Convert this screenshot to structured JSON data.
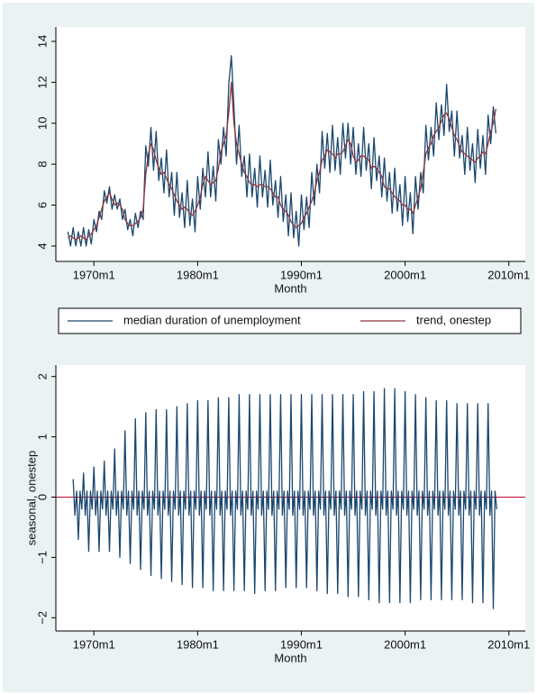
{
  "chart_data": [
    {
      "type": "line",
      "xlabel": "Month",
      "legend": "bottom",
      "grid": false,
      "xlim": [
        76,
        619
      ],
      "ylim": [
        3.25,
        14.7
      ],
      "xticks": [
        {
          "value": 120,
          "label": "1970m1"
        },
        {
          "value": 240,
          "label": "1980m1"
        },
        {
          "value": 360,
          "label": "1990m1"
        },
        {
          "value": 480,
          "label": "2000m1"
        },
        {
          "value": 600,
          "label": "2010m1"
        }
      ],
      "yticks": [
        4,
        6,
        8,
        10,
        12,
        14
      ],
      "x": [
        90,
        93,
        96,
        99,
        102,
        105,
        108,
        111,
        114,
        117,
        120,
        123,
        126,
        129,
        132,
        135,
        138,
        141,
        144,
        147,
        150,
        153,
        156,
        159,
        162,
        165,
        168,
        171,
        174,
        177,
        180,
        183,
        186,
        189,
        192,
        195,
        198,
        201,
        204,
        207,
        210,
        213,
        216,
        219,
        222,
        225,
        228,
        231,
        234,
        237,
        240,
        243,
        246,
        249,
        252,
        255,
        258,
        261,
        264,
        267,
        270,
        273,
        276,
        279,
        282,
        285,
        288,
        291,
        294,
        297,
        300,
        303,
        306,
        309,
        312,
        315,
        318,
        321,
        324,
        327,
        330,
        333,
        336,
        339,
        342,
        345,
        348,
        351,
        354,
        357,
        360,
        363,
        366,
        369,
        372,
        375,
        378,
        381,
        384,
        387,
        390,
        393,
        396,
        399,
        402,
        405,
        408,
        411,
        414,
        417,
        420,
        423,
        426,
        429,
        432,
        435,
        438,
        441,
        444,
        447,
        450,
        453,
        456,
        459,
        462,
        465,
        468,
        471,
        474,
        477,
        480,
        483,
        486,
        489,
        492,
        495,
        498,
        501,
        504,
        507,
        510,
        513,
        516,
        519,
        522,
        525,
        528,
        531,
        534,
        537,
        540,
        543,
        546,
        549,
        552,
        555,
        558,
        561,
        564,
        567,
        570,
        573,
        576,
        579,
        582,
        585
      ],
      "series": [
        {
          "name": "median duration of unemployment",
          "color": "#1a476f",
          "values": [
            4.7,
            4.0,
            4.9,
            4.0,
            4.7,
            4.0,
            4.9,
            4.0,
            4.8,
            4.1,
            5.3,
            4.7,
            5.7,
            5.3,
            6.7,
            6.1,
            6.9,
            5.8,
            6.5,
            5.8,
            6.3,
            5.3,
            5.8,
            4.8,
            5.3,
            4.5,
            5.6,
            4.9,
            5.7,
            5.3,
            8.9,
            7.9,
            9.8,
            7.7,
            9.6,
            7.2,
            8.3,
            6.6,
            8.7,
            6.4,
            7.6,
            5.5,
            7.6,
            5.4,
            6.6,
            4.9,
            7.2,
            5.0,
            6.3,
            4.7,
            7.4,
            5.8,
            7.8,
            6.4,
            8.6,
            6.4,
            7.9,
            6.2,
            9.2,
            8.0,
            9.8,
            8.4,
            11.9,
            13.3,
            10.8,
            8.0,
            9.9,
            7.4,
            8.4,
            6.4,
            8.5,
            6.4,
            7.8,
            5.9,
            8.4,
            6.4,
            7.7,
            5.9,
            8.2,
            6.0,
            7.2,
            5.4,
            7.4,
            5.2,
            6.5,
            4.5,
            6.6,
            4.4,
            5.7,
            4.0,
            6.5,
            4.8,
            6.4,
            4.9,
            7.6,
            6.0,
            8.0,
            6.6,
            9.6,
            7.8,
            9.5,
            7.6,
            9.9,
            7.7,
            9.3,
            7.5,
            10.0,
            8.3,
            10.0,
            8.0,
            9.8,
            7.5,
            9.0,
            7.4,
            9.8,
            7.7,
            9.0,
            6.8,
            9.3,
            7.2,
            8.4,
            6.4,
            8.3,
            6.2,
            7.6,
            5.6,
            7.8,
            5.7,
            7.0,
            5.0,
            7.4,
            5.2,
            6.6,
            4.6,
            7.4,
            5.8,
            7.6,
            6.6,
            9.9,
            8.2,
            9.8,
            8.4,
            11.0,
            9.2,
            10.9,
            9.4,
            11.9,
            9.6,
            10.6,
            8.4,
            10.6,
            8.3,
            9.4,
            7.5,
            9.8,
            7.7,
            9.0,
            7.1,
            9.7,
            7.8,
            9.4,
            7.5,
            10.4,
            9.0,
            10.8,
            9.5
          ]
        },
        {
          "name": "trend, onestep",
          "color": "#90353b",
          "values": [
            4.4,
            4.5,
            4.4,
            4.3,
            4.4,
            4.5,
            4.4,
            4.3,
            4.5,
            4.6,
            4.8,
            5.0,
            5.4,
            5.8,
            6.2,
            6.4,
            6.6,
            6.3,
            6.0,
            6.1,
            6.0,
            5.8,
            5.3,
            5.1,
            5.0,
            5.0,
            5.1,
            5.2,
            5.4,
            5.8,
            7.5,
            8.5,
            9.0,
            8.7,
            8.2,
            7.8,
            7.5,
            7.6,
            7.3,
            7.0,
            6.8,
            6.5,
            6.2,
            6.0,
            5.8,
            5.9,
            5.8,
            5.6,
            5.5,
            5.7,
            6.0,
            6.4,
            7.0,
            7.4,
            7.2,
            7.0,
            7.1,
            7.2,
            7.8,
            8.6,
            9.0,
            9.4,
            10.5,
            12.0,
            10.0,
            9.0,
            8.5,
            8.0,
            7.6,
            7.4,
            7.1,
            7.0,
            7.0,
            6.9,
            7.0,
            7.0,
            6.9,
            6.9,
            6.8,
            6.6,
            6.4,
            6.4,
            6.0,
            5.8,
            5.7,
            5.5,
            5.2,
            5.0,
            4.9,
            5.0,
            5.1,
            5.4,
            5.6,
            5.9,
            6.2,
            6.6,
            7.2,
            7.6,
            8.2,
            8.4,
            8.7,
            8.6,
            8.5,
            8.3,
            8.5,
            8.5,
            8.6,
            8.9,
            9.2,
            9.0,
            8.4,
            8.1,
            8.2,
            8.4,
            8.4,
            8.3,
            8.2,
            7.8,
            7.9,
            7.8,
            7.6,
            7.4,
            6.9,
            6.8,
            6.8,
            6.6,
            6.4,
            6.3,
            6.2,
            6.0,
            6.0,
            5.8,
            5.8,
            5.6,
            6.0,
            6.4,
            6.8,
            7.6,
            8.5,
            8.8,
            9.0,
            9.4,
            9.6,
            9.8,
            10.1,
            10.4,
            10.5,
            10.2,
            9.8,
            9.4,
            9.2,
            8.9,
            8.6,
            8.5,
            8.4,
            8.3,
            8.2,
            8.1,
            8.3,
            8.4,
            8.6,
            8.5,
            9.0,
            9.6,
            10.0,
            10.7
          ]
        }
      ]
    },
    {
      "type": "line",
      "xlabel": "Month",
      "ylabel": "seasonal, onestep",
      "grid": false,
      "xlim": [
        76,
        619
      ],
      "ylim": [
        -2.22,
        2.19
      ],
      "xticks": [
        {
          "value": 120,
          "label": "1970m1"
        },
        {
          "value": 240,
          "label": "1980m1"
        },
        {
          "value": 360,
          "label": "1990m1"
        },
        {
          "value": 480,
          "label": "2000m1"
        },
        {
          "value": 600,
          "label": "2010m1"
        }
      ],
      "yticks": [
        {
          "value": -2,
          "label": "−2"
        },
        {
          "value": -1,
          "label": "−1"
        },
        0,
        1,
        2
      ],
      "reference_line": {
        "value": 0,
        "color": "#c10534"
      },
      "x": [
        96,
        98,
        100,
        102,
        104,
        106,
        108,
        110,
        112,
        114,
        116,
        118,
        120,
        122,
        124,
        126,
        128,
        130,
        132,
        134,
        136,
        138,
        140,
        142,
        144,
        146,
        148,
        150,
        152,
        154,
        156,
        158,
        160,
        162,
        164,
        166,
        168,
        170,
        172,
        174,
        176,
        178,
        180,
        182,
        184,
        186,
        188,
        190,
        192,
        194,
        196,
        198,
        200,
        202,
        204,
        206,
        208,
        210,
        212,
        214,
        216,
        218,
        220,
        222,
        224,
        226,
        228,
        230,
        232,
        234,
        236,
        238,
        240,
        242,
        244,
        246,
        248,
        250,
        252,
        254,
        256,
        258,
        260,
        262,
        264,
        266,
        268,
        270,
        272,
        274,
        276,
        278,
        280,
        282,
        284,
        286,
        288,
        290,
        292,
        294,
        296,
        298,
        300,
        302,
        304,
        306,
        308,
        310,
        312,
        314,
        316,
        318,
        320,
        322,
        324,
        326,
        328,
        330,
        332,
        334,
        336,
        338,
        340,
        342,
        344,
        346,
        348,
        350,
        352,
        354,
        356,
        358,
        360,
        362,
        364,
        366,
        368,
        370,
        372,
        374,
        376,
        378,
        380,
        382,
        384,
        386,
        388,
        390,
        392,
        394,
        396,
        398,
        400,
        402,
        404,
        406,
        408,
        410,
        412,
        414,
        416,
        418,
        420,
        422,
        424,
        426,
        428,
        430,
        432,
        434,
        436,
        438,
        440,
        442,
        444,
        446,
        448,
        450,
        452,
        454,
        456,
        458,
        460,
        462,
        464,
        466,
        468,
        470,
        472,
        474,
        476,
        478,
        480,
        482,
        484,
        486,
        488,
        490,
        492,
        494,
        496,
        498,
        500,
        502,
        504,
        506,
        508,
        510,
        512,
        514,
        516,
        518,
        520,
        522,
        524,
        526,
        528,
        530,
        532,
        534,
        536,
        538,
        540,
        542,
        544,
        546,
        548,
        550,
        552,
        554,
        556,
        558,
        560,
        562,
        564,
        566,
        568,
        570,
        572,
        574,
        576,
        578,
        580,
        582,
        584,
        586
      ],
      "series": [
        {
          "name": "seasonal, onestep",
          "color": "#1a476f",
          "values": [
            0.3,
            -0.3,
            0.1,
            -0.7,
            0.1,
            -0.2,
            0.4,
            -0.3,
            0.1,
            -0.9,
            0.1,
            -0.2,
            0.5,
            -0.3,
            0.1,
            -0.9,
            0.1,
            -0.2,
            0.6,
            -0.3,
            0.1,
            -0.9,
            0.1,
            -0.2,
            0.8,
            -0.3,
            0.1,
            -1.0,
            0.1,
            -0.2,
            1.1,
            -0.3,
            0.1,
            -1.1,
            0.1,
            -0.2,
            1.3,
            -0.3,
            0.1,
            -1.2,
            0.1,
            -0.2,
            1.4,
            -0.3,
            0.1,
            -1.3,
            0.1,
            -0.2,
            1.45,
            -0.3,
            0.1,
            -1.35,
            0.1,
            -0.2,
            1.45,
            -0.3,
            0.1,
            -1.4,
            0.1,
            -0.2,
            1.5,
            -0.3,
            0.1,
            -1.45,
            0.1,
            -0.2,
            1.55,
            -0.3,
            0.1,
            -1.5,
            0.1,
            -0.2,
            1.6,
            -0.3,
            0.1,
            -1.5,
            0.1,
            -0.2,
            1.6,
            -0.3,
            0.1,
            -1.55,
            0.1,
            -0.2,
            1.65,
            -0.3,
            0.1,
            -1.55,
            0.1,
            -0.2,
            1.65,
            -0.3,
            0.1,
            -1.55,
            0.1,
            -0.2,
            1.7,
            -0.3,
            0.1,
            -1.55,
            0.1,
            -0.2,
            1.7,
            -0.3,
            0.1,
            -1.6,
            0.1,
            -0.2,
            1.7,
            -0.3,
            0.1,
            -1.55,
            0.1,
            -0.2,
            1.7,
            -0.3,
            0.1,
            -1.55,
            0.1,
            -0.2,
            1.7,
            -0.3,
            0.1,
            -1.5,
            0.1,
            -0.2,
            1.7,
            -0.3,
            0.1,
            -1.5,
            0.1,
            -0.2,
            1.7,
            -0.3,
            0.1,
            -1.5,
            0.1,
            -0.2,
            1.7,
            -0.3,
            0.1,
            -1.55,
            0.1,
            -0.2,
            1.7,
            -0.3,
            0.1,
            -1.6,
            0.1,
            -0.2,
            1.7,
            -0.3,
            0.1,
            -1.6,
            0.1,
            -0.2,
            1.7,
            -0.3,
            0.1,
            -1.65,
            0.1,
            -0.2,
            1.7,
            -0.3,
            0.1,
            -1.65,
            0.1,
            -0.2,
            1.75,
            -0.3,
            0.1,
            -1.7,
            0.1,
            -0.2,
            1.75,
            -0.3,
            0.1,
            -1.75,
            0.1,
            -0.2,
            1.8,
            -0.3,
            0.1,
            -1.75,
            0.1,
            -0.2,
            1.8,
            -0.3,
            0.1,
            -1.75,
            0.1,
            -0.2,
            1.75,
            -0.3,
            0.1,
            -1.75,
            0.1,
            -0.2,
            1.7,
            -0.3,
            0.1,
            -1.7,
            0.1,
            -0.2,
            1.65,
            -0.3,
            0.1,
            -1.7,
            0.1,
            -0.2,
            1.6,
            -0.3,
            0.1,
            -1.7,
            0.1,
            -0.2,
            1.6,
            -0.3,
            0.1,
            -1.7,
            0.1,
            -0.2,
            1.55,
            -0.3,
            0.1,
            -1.7,
            0.1,
            -0.2,
            1.55,
            -0.3,
            0.1,
            -1.75,
            0.1,
            -0.2,
            1.55,
            -0.3,
            0.1,
            -1.75,
            0.1,
            -0.2,
            1.55,
            -0.3,
            0.1,
            -1.85,
            0.1,
            -0.2
          ]
        }
      ]
    }
  ]
}
